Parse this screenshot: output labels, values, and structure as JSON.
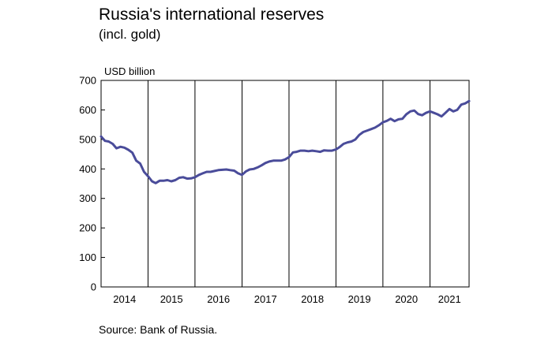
{
  "title": "Russia's international reserves",
  "subtitle": "(incl. gold)",
  "unit_label": "USD billion",
  "source": "Source: Bank of Russia.",
  "colors": {
    "series": "#4a4c9a",
    "grid": "#000000",
    "axis": "#000000"
  },
  "chart_data": {
    "type": "line",
    "title": "Russia's international reserves",
    "subtitle": "(incl. gold)",
    "ylabel": "USD billion",
    "xlabel": "",
    "ylim": [
      0,
      700
    ],
    "yticks": [
      0,
      100,
      200,
      300,
      400,
      500,
      600,
      700
    ],
    "xlim": [
      "2014-01-01",
      "2021-11-01"
    ],
    "xtick_labels": [
      "2014",
      "2015",
      "2016",
      "2017",
      "2018",
      "2019",
      "2020",
      "2021"
    ],
    "grid": "vertical lines at year boundaries",
    "series": [
      {
        "color": "#4a4c9a",
        "points": [
          [
            "2014-01-01",
            510
          ],
          [
            "2014-02-01",
            495
          ],
          [
            "2014-03-01",
            493
          ],
          [
            "2014-04-01",
            485
          ],
          [
            "2014-05-01",
            470
          ],
          [
            "2014-06-01",
            475
          ],
          [
            "2014-07-01",
            472
          ],
          [
            "2014-08-01",
            465
          ],
          [
            "2014-09-01",
            455
          ],
          [
            "2014-10-01",
            428
          ],
          [
            "2014-11-01",
            418
          ],
          [
            "2014-12-01",
            390
          ],
          [
            "2015-01-01",
            375
          ],
          [
            "2015-02-01",
            358
          ],
          [
            "2015-03-01",
            352
          ],
          [
            "2015-04-01",
            360
          ],
          [
            "2015-05-01",
            360
          ],
          [
            "2015-06-01",
            362
          ],
          [
            "2015-07-01",
            358
          ],
          [
            "2015-08-01",
            362
          ],
          [
            "2015-09-01",
            370
          ],
          [
            "2015-10-01",
            372
          ],
          [
            "2015-11-01",
            367
          ],
          [
            "2015-12-01",
            368
          ],
          [
            "2016-01-01",
            372
          ],
          [
            "2016-02-01",
            380
          ],
          [
            "2016-03-01",
            385
          ],
          [
            "2016-04-01",
            390
          ],
          [
            "2016-05-01",
            390
          ],
          [
            "2016-06-01",
            393
          ],
          [
            "2016-07-01",
            396
          ],
          [
            "2016-08-01",
            397
          ],
          [
            "2016-09-01",
            398
          ],
          [
            "2016-10-01",
            396
          ],
          [
            "2016-11-01",
            394
          ],
          [
            "2016-12-01",
            385
          ],
          [
            "2017-01-01",
            380
          ],
          [
            "2017-02-01",
            392
          ],
          [
            "2017-03-01",
            398
          ],
          [
            "2017-04-01",
            400
          ],
          [
            "2017-05-01",
            405
          ],
          [
            "2017-06-01",
            412
          ],
          [
            "2017-07-01",
            420
          ],
          [
            "2017-08-01",
            425
          ],
          [
            "2017-09-01",
            428
          ],
          [
            "2017-10-01",
            428
          ],
          [
            "2017-11-01",
            428
          ],
          [
            "2017-12-01",
            432
          ],
          [
            "2018-01-01",
            440
          ],
          [
            "2018-02-01",
            456
          ],
          [
            "2018-03-01",
            458
          ],
          [
            "2018-04-01",
            462
          ],
          [
            "2018-05-01",
            462
          ],
          [
            "2018-06-01",
            460
          ],
          [
            "2018-07-01",
            462
          ],
          [
            "2018-08-01",
            460
          ],
          [
            "2018-09-01",
            458
          ],
          [
            "2018-10-01",
            463
          ],
          [
            "2018-11-01",
            462
          ],
          [
            "2018-12-01",
            462
          ],
          [
            "2019-01-01",
            466
          ],
          [
            "2019-02-01",
            475
          ],
          [
            "2019-03-01",
            485
          ],
          [
            "2019-04-01",
            490
          ],
          [
            "2019-05-01",
            493
          ],
          [
            "2019-06-01",
            500
          ],
          [
            "2019-07-01",
            515
          ],
          [
            "2019-08-01",
            525
          ],
          [
            "2019-09-01",
            530
          ],
          [
            "2019-10-01",
            535
          ],
          [
            "2019-11-01",
            540
          ],
          [
            "2019-12-01",
            548
          ],
          [
            "2020-01-01",
            558
          ],
          [
            "2020-02-01",
            563
          ],
          [
            "2020-03-01",
            570
          ],
          [
            "2020-04-01",
            562
          ],
          [
            "2020-05-01",
            568
          ],
          [
            "2020-06-01",
            570
          ],
          [
            "2020-07-01",
            585
          ],
          [
            "2020-08-01",
            595
          ],
          [
            "2020-09-01",
            598
          ],
          [
            "2020-10-01",
            586
          ],
          [
            "2020-11-01",
            582
          ],
          [
            "2020-12-01",
            590
          ],
          [
            "2021-01-01",
            595
          ],
          [
            "2021-02-01",
            590
          ],
          [
            "2021-03-01",
            585
          ],
          [
            "2021-04-01",
            578
          ],
          [
            "2021-05-01",
            590
          ],
          [
            "2021-06-01",
            603
          ],
          [
            "2021-07-01",
            595
          ],
          [
            "2021-08-01",
            600
          ],
          [
            "2021-09-01",
            618
          ],
          [
            "2021-10-01",
            622
          ],
          [
            "2021-11-01",
            630
          ]
        ]
      }
    ]
  }
}
